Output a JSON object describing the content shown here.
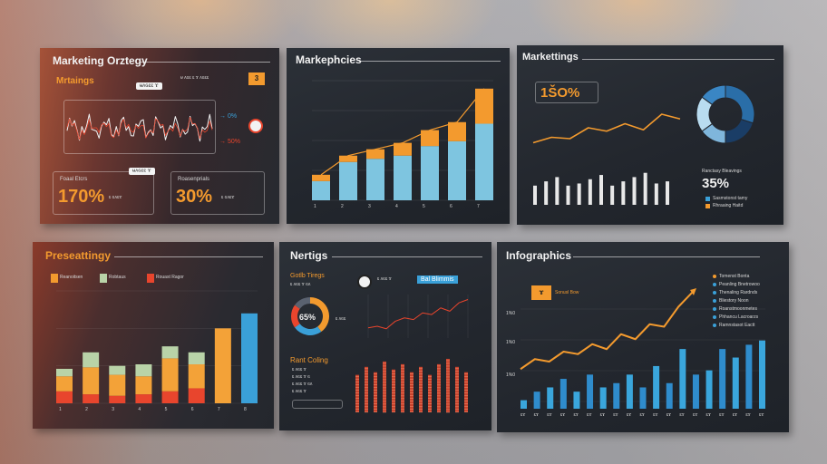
{
  "boards": {
    "b1": {
      "title": "Marketing Orztegy",
      "subtitle": "Mrtaings",
      "chip_top": "ᵾʌɢɛɛ ɤ",
      "badge": "3",
      "stat_a_label": "Foaal Etcrs",
      "stat_a_value": "170%",
      "stat_b_label": "Roasenprials",
      "stat_b_value": "30%",
      "callout_a": "→ 0%",
      "callout_b": "→ 50%"
    },
    "b2": {
      "title": "Markephcies",
      "chart_data": {
        "type": "bar",
        "categories": [
          "1",
          "2",
          "3",
          "4",
          "5",
          "6",
          "7"
        ],
        "series": [
          {
            "values": [
              12,
              24,
              26,
              28,
              34,
              37,
              48
            ]
          },
          {
            "values": [
              4,
              4,
              6,
              8,
              10,
              12,
              22
            ]
          }
        ],
        "colors": [
          "#7ec5e0",
          "#f39a2e"
        ],
        "ylim": [
          0,
          75
        ]
      }
    },
    "b3": {
      "title": "Markettings",
      "big_value": "1ŠO%",
      "donut_value": "35%",
      "donut_label": "Ranctasy Bleavings",
      "legend": [
        "Sasmstonst tamy",
        "Rhraaing Haitd"
      ],
      "line_values": [
        30,
        38,
        36,
        52,
        47,
        58,
        49,
        72,
        65
      ],
      "bar_values": [
        18,
        22,
        26,
        18,
        20,
        24,
        28,
        18,
        22,
        26,
        30,
        20,
        22
      ],
      "donut_segments": [
        30,
        20,
        15,
        20,
        15
      ],
      "donut_colors": [
        "#2a6ea8",
        "#1a3d66",
        "#7fb6dc",
        "#b9dcf0",
        "#3a86c4"
      ]
    },
    "b4": {
      "title": "Preseattingy",
      "legend": [
        "Reanoitsen",
        "Robtaus",
        "Rouast Ragor"
      ],
      "chart_data": {
        "type": "bar",
        "categories": [
          "1",
          "2",
          "3",
          "4",
          "5",
          "6",
          "7",
          "8"
        ],
        "series": [
          {
            "values": [
              8,
              6,
              5,
              6,
              8,
              10,
              0,
              0
            ]
          },
          {
            "values": [
              10,
              18,
              14,
              12,
              22,
              16,
              0,
              0
            ]
          },
          {
            "values": [
              5,
              10,
              6,
              8,
              8,
              8,
              50,
              60
            ]
          }
        ],
        "colors": [
          "#e8452d",
          "#f3a238",
          "#b9d3a8"
        ],
        "ylim": [
          0,
          75
        ]
      }
    },
    "b5": {
      "title": "Nertigs",
      "side_title": "Gotlb Tiregs",
      "donut_value": "65%",
      "chip": "Bal Blimmis",
      "list_title": "Rant Coling",
      "line_values": [
        10,
        12,
        9,
        18,
        22,
        20,
        28,
        26,
        34,
        30,
        40,
        44
      ],
      "bar_values": [
        28,
        34,
        30,
        38,
        32,
        36,
        30,
        34,
        28,
        36,
        40,
        34,
        30
      ],
      "donut_colors": [
        "#f39a2e",
        "#3aa0d8",
        "#e8452d",
        "#5a6270"
      ]
    },
    "b6": {
      "title": "Infographics",
      "chip": "Sonusl Bow",
      "legend": [
        "Tomenst Bonta",
        "Peanling Bnetrowoo",
        "Thenaling Rardnds",
        "Bliestory Noon",
        "Roanstmoonmetes",
        "Phhancu Lacroarzs",
        "Ramnstasot Eactt"
      ],
      "y_ticks": [
        "1%0",
        "1%0",
        "1%0"
      ],
      "line_values": [
        10,
        18,
        16,
        24,
        22,
        30,
        26,
        38,
        34,
        46,
        44,
        60,
        72
      ],
      "bar_values": [
        4,
        8,
        10,
        14,
        8,
        16,
        10,
        12,
        16,
        10,
        20,
        12,
        28,
        16,
        18,
        28,
        24,
        30,
        32
      ]
    }
  }
}
